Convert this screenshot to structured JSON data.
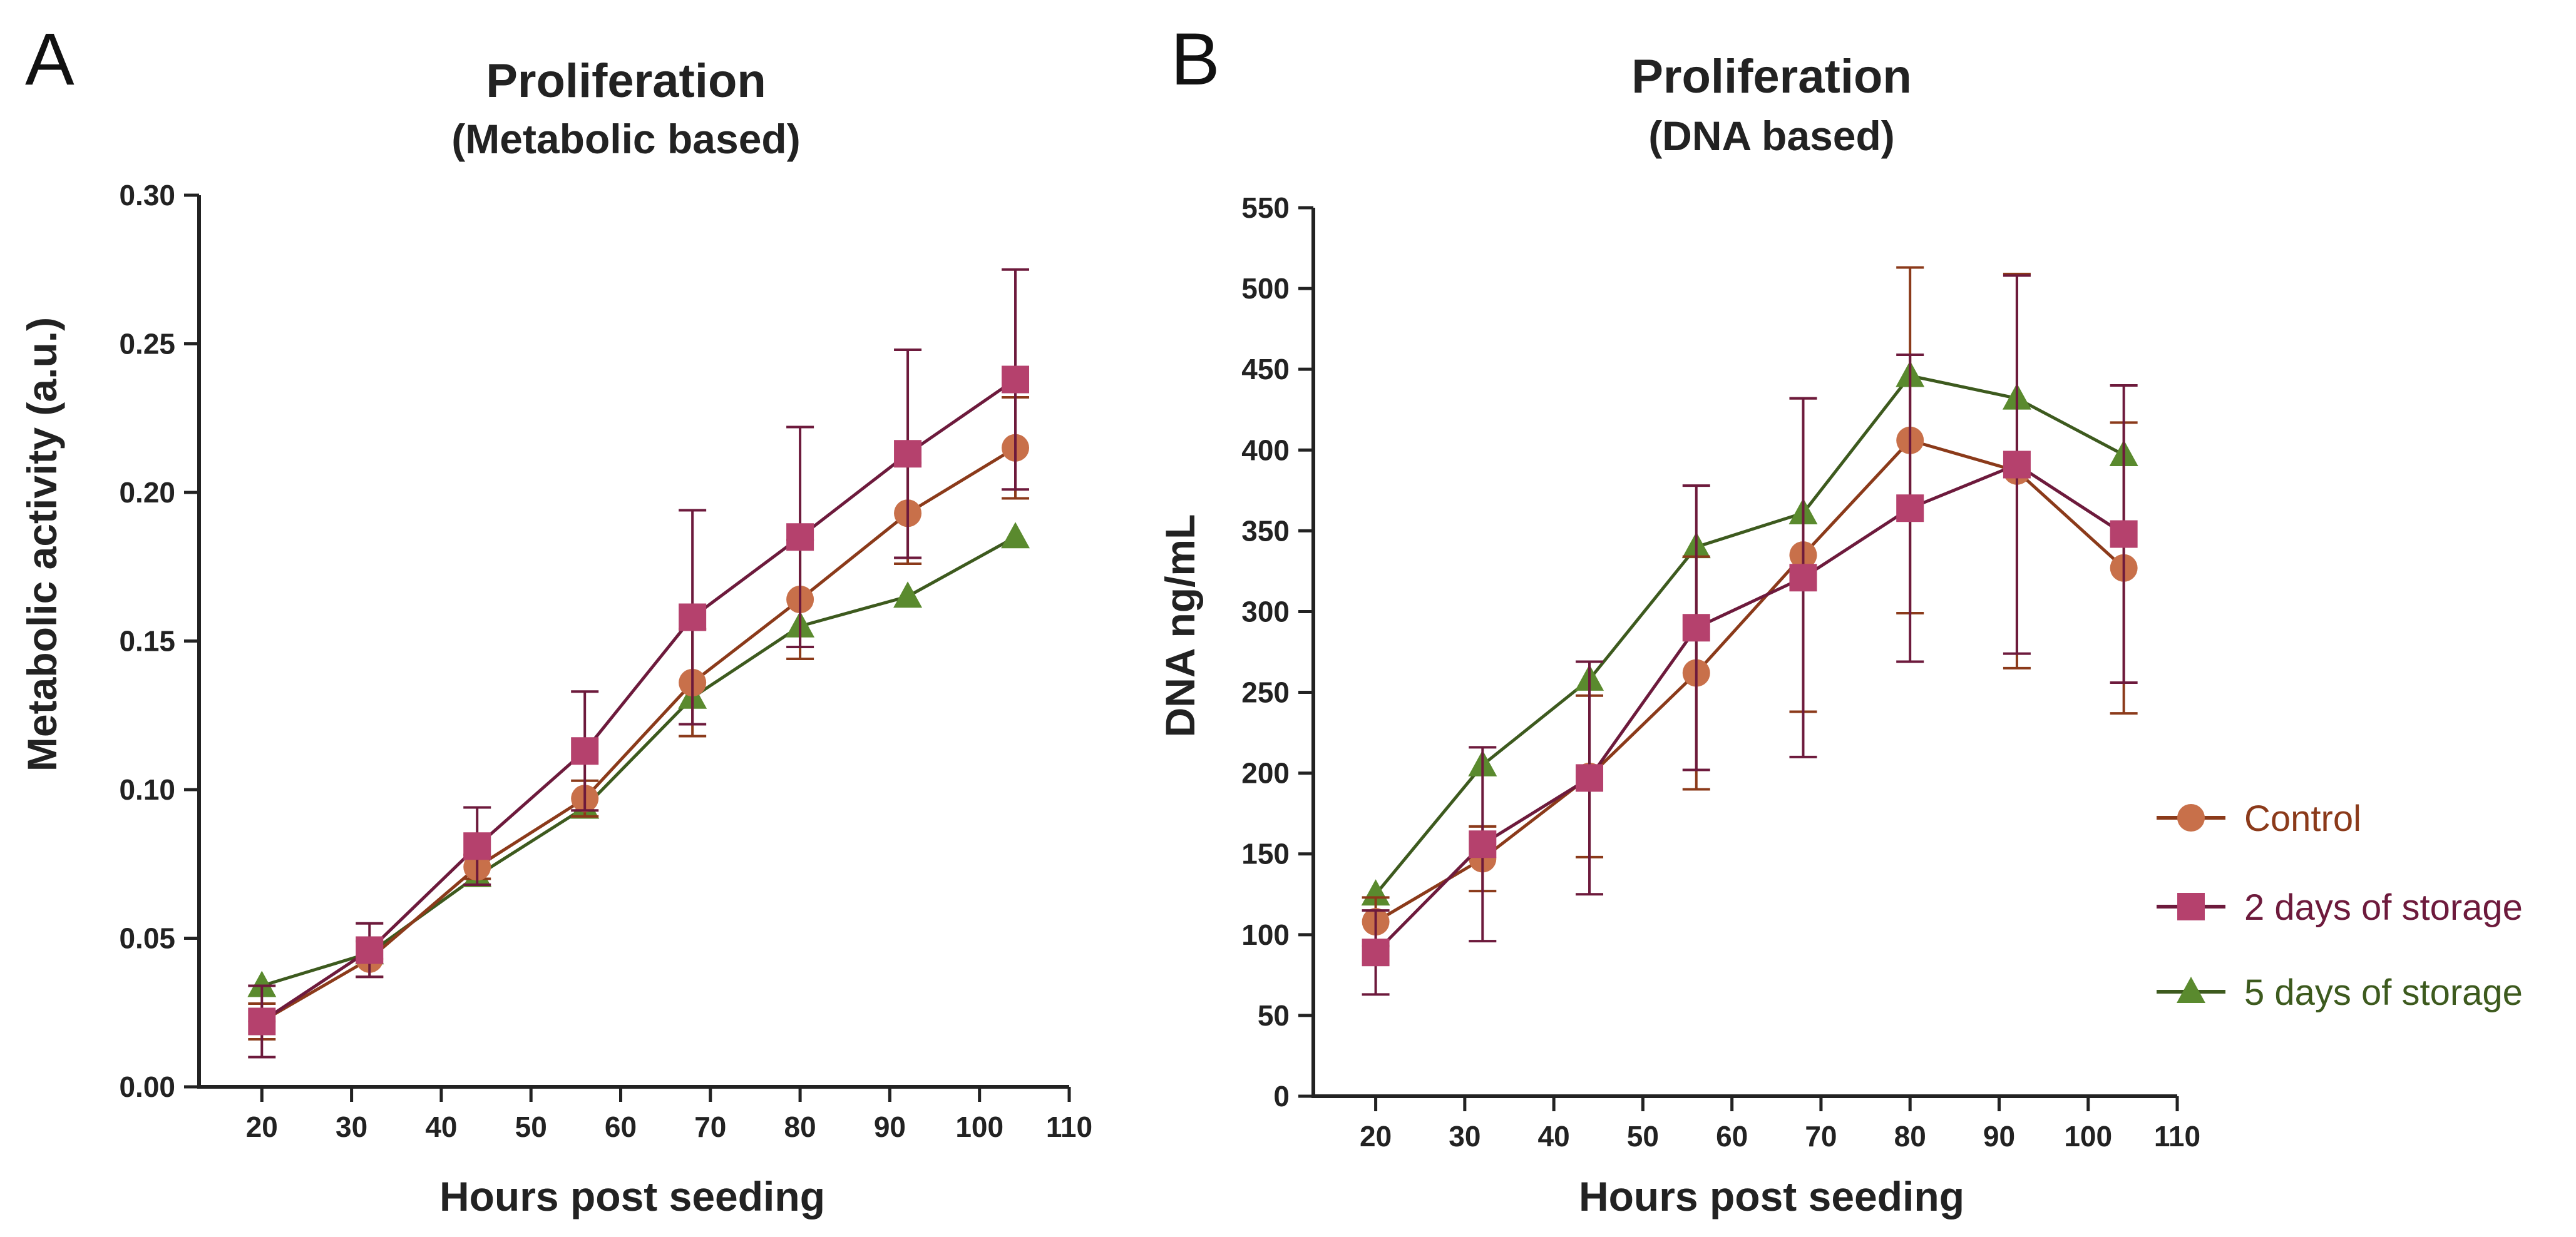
{
  "legend": [
    {
      "label": "Control",
      "color": "#8b3a1a",
      "marker_color": "#c8704a",
      "marker": "circle"
    },
    {
      "label": "2 days of storage",
      "color": "#6d1a3c",
      "marker_color": "#b5416d",
      "marker": "square"
    },
    {
      "label": "5 days of storage",
      "color": "#3d5a1e",
      "marker_color": "#5a8a2e",
      "marker": "triangle"
    }
  ],
  "chart_data": [
    {
      "panel": "A",
      "type": "line",
      "title": "Proliferation",
      "subtitle": "(Metabolic based)",
      "xlabel": "Hours post seeding",
      "ylabel": "Metabolic activity (a.u.)",
      "xlim": [
        13,
        110
      ],
      "ylim": [
        0,
        0.3
      ],
      "xticks": [
        20,
        30,
        40,
        50,
        60,
        70,
        80,
        90,
        100,
        110
      ],
      "xtick_labels": [
        "20",
        "30",
        "40",
        "50",
        "60",
        "70",
        "80",
        "90",
        "100",
        "110"
      ],
      "yticks": [
        0,
        0.05,
        0.1,
        0.15,
        0.2,
        0.25,
        0.3
      ],
      "ytick_labels": [
        "0.00",
        "0.05",
        "0.10",
        "0.15",
        "0.20",
        "0.25",
        "0.30"
      ],
      "x": [
        20,
        32,
        44,
        56,
        68,
        80,
        92,
        104
      ],
      "series": [
        {
          "name": "Control",
          "values": [
            0.022,
            0.043,
            0.074,
            0.097,
            0.136,
            0.164,
            0.193,
            0.215
          ],
          "error": [
            0.006,
            0.006,
            0.004,
            0.006,
            0.018,
            0.02,
            0.017,
            0.017
          ]
        },
        {
          "name": "2 days of storage",
          "values": [
            0.022,
            0.046,
            0.081,
            0.113,
            0.158,
            0.185,
            0.213,
            0.238
          ],
          "error": [
            0.012,
            0.009,
            0.013,
            0.02,
            0.036,
            0.037,
            0.035,
            0.037
          ]
        },
        {
          "name": "5 days of storage",
          "values": [
            0.034,
            0.045,
            0.071,
            0.094,
            0.131,
            0.155,
            0.165,
            0.185
          ],
          "error": [
            0,
            0,
            0,
            0,
            0,
            0,
            0,
            0
          ]
        }
      ]
    },
    {
      "panel": "B",
      "type": "line",
      "title": "Proliferation",
      "subtitle": "(DNA based)",
      "xlabel": "Hours post seeding",
      "ylabel": "DNA ng/mL",
      "xlim": [
        13,
        110
      ],
      "ylim": [
        0,
        550
      ],
      "xticks": [
        20,
        30,
        40,
        50,
        60,
        70,
        80,
        90,
        100,
        110
      ],
      "xtick_labels": [
        "20",
        "30",
        "40",
        "50",
        "60",
        "70",
        "80",
        "90",
        "100",
        "110"
      ],
      "yticks": [
        0,
        50,
        100,
        150,
        200,
        250,
        300,
        350,
        400,
        450,
        500,
        550
      ],
      "ytick_labels": [
        "0",
        "50",
        "100",
        "150",
        "200",
        "250",
        "300",
        "350",
        "400",
        "450",
        "500",
        "550"
      ],
      "x": [
        20,
        32,
        44,
        56,
        68,
        80,
        92,
        104
      ],
      "series": [
        {
          "name": "Control",
          "values": [
            108,
            147,
            198,
            262,
            335,
            406,
            387,
            327
          ],
          "error": [
            15,
            20,
            50,
            72,
            97,
            107,
            122,
            90
          ]
        },
        {
          "name": "2 days of storage",
          "values": [
            89,
            156,
            197,
            290,
            321,
            364,
            391,
            348
          ],
          "error": [
            26,
            60,
            72,
            88,
            111,
            95,
            117,
            92
          ]
        },
        {
          "name": "5 days of storage",
          "values": [
            125,
            205,
            258,
            340,
            361,
            446,
            432,
            397
          ],
          "error": [
            0,
            0,
            0,
            0,
            0,
            0,
            0,
            0
          ]
        }
      ]
    }
  ]
}
